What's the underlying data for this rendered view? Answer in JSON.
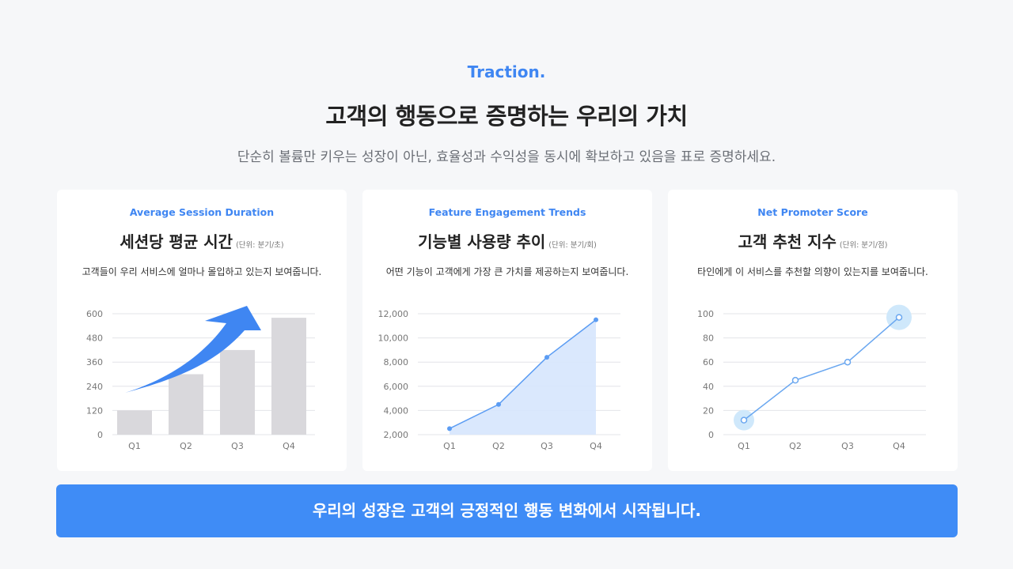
{
  "header": {
    "eyebrow": "Traction.",
    "title": "고객의 행동으로 증명하는 우리의 가치",
    "subtitle": "단순히 볼륨만 키우는 성장이 아닌, 효율성과 수익성을 동시에 확보하고 있음을 표로 증명하세요."
  },
  "cards": [
    {
      "eyebrow": "Average Session Duration",
      "title": "세션당 평균 시간",
      "unit": "(단위: 분기/초)",
      "desc": "고객들이 우리 서비스에 얼마나 몰입하고 있는지 보여줍니다."
    },
    {
      "eyebrow": "Feature Engagement Trends",
      "title": "기능별 사용량 추이",
      "unit": "(단위: 분기/회)",
      "desc": "어떤 기능이 고객에게 가장 큰 가치를 제공하는지 보여줍니다."
    },
    {
      "eyebrow": "Net Promoter Score",
      "title": "고객 추천 지수",
      "unit": "(단위: 분기/점)",
      "desc": "타인에게 이 서비스를 추천할 의향이 있는지를 보여줍니다."
    }
  ],
  "chart_data": [
    {
      "type": "bar",
      "categories": [
        "Q1",
        "Q2",
        "Q3",
        "Q4"
      ],
      "values": [
        120,
        300,
        420,
        580
      ],
      "ylim": [
        0,
        600
      ],
      "yticks": [
        0,
        120,
        240,
        360,
        480,
        600
      ],
      "ytick_labels": [
        "0",
        "120",
        "240",
        "360",
        "480",
        "600"
      ],
      "grid": true,
      "bar_color": "#d9d8dc",
      "annotation": "upward-arrow",
      "annotation_color": "#3f86f2"
    },
    {
      "type": "area",
      "categories": [
        "Q1",
        "Q2",
        "Q3",
        "Q4"
      ],
      "values": [
        2500,
        4500,
        8400,
        11500
      ],
      "ylim": [
        2000,
        12000
      ],
      "yticks": [
        2000,
        4000,
        6000,
        8000,
        10000,
        12000
      ],
      "ytick_labels": [
        "2,000",
        "4,000",
        "6,000",
        "8,000",
        "10,000",
        "12,000"
      ],
      "grid": true,
      "line_color": "#5b9cf3",
      "fill_color": "#d6e5fd"
    },
    {
      "type": "line",
      "categories": [
        "Q1",
        "Q2",
        "Q3",
        "Q4"
      ],
      "values": [
        12,
        45,
        60,
        97
      ],
      "ylim": [
        0,
        100
      ],
      "yticks": [
        0,
        20,
        40,
        60,
        80,
        100
      ],
      "ytick_labels": [
        "0",
        "20",
        "40",
        "60",
        "80",
        "100"
      ],
      "grid": true,
      "line_color": "#6aa7f0",
      "highlight_points": [
        0,
        3
      ],
      "highlight_color": "#cfe8fb"
    }
  ],
  "footer": {
    "banner": "우리의 성장은 고객의 긍정적인 행동 변화에서 시작됩니다."
  }
}
